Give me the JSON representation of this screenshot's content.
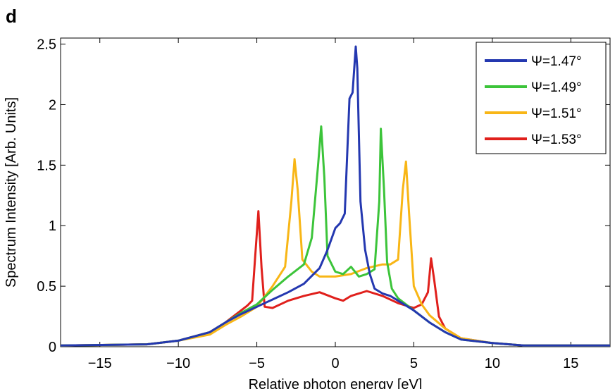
{
  "panel_label": "d",
  "chart_data": {
    "type": "line",
    "xlabel": "Relative photon energy [eV]",
    "ylabel": "Spectrum Intensity [Arb. Units]",
    "xlim": [
      -17.5,
      17.5
    ],
    "ylim": [
      0,
      2.55
    ],
    "xticks": [
      -15,
      -10,
      -5,
      0,
      5,
      10,
      15
    ],
    "xtick_labels": [
      "−15",
      "−10",
      "−5",
      "0",
      "5",
      "10",
      "15"
    ],
    "yticks": [
      0,
      0.5,
      1,
      1.5,
      2,
      2.5
    ],
    "ytick_labels": [
      "0",
      "0.5",
      "1",
      "1.5",
      "2",
      "2.5"
    ],
    "grid": false,
    "legend_position": "top-right",
    "series": [
      {
        "name": "Ψ=1.47°",
        "color": "#2438b0",
        "x": [
          -17.5,
          -12,
          -10,
          -8,
          -7,
          -6,
          -5,
          -4,
          -3,
          -2,
          -1,
          -0.5,
          0,
          0.3,
          0.6,
          0.9,
          1.1,
          1.3,
          1.4,
          1.6,
          1.9,
          2.2,
          2.5,
          3,
          3.5,
          4,
          5,
          6,
          7,
          8,
          10,
          12,
          17.5
        ],
        "y": [
          0.01,
          0.02,
          0.05,
          0.12,
          0.2,
          0.27,
          0.33,
          0.39,
          0.45,
          0.52,
          0.65,
          0.8,
          0.98,
          1.02,
          1.1,
          2.05,
          2.1,
          2.48,
          2.3,
          1.2,
          0.8,
          0.6,
          0.48,
          0.44,
          0.42,
          0.38,
          0.3,
          0.2,
          0.12,
          0.06,
          0.03,
          0.01,
          0.01
        ]
      },
      {
        "name": "Ψ=1.49°",
        "color": "#3cc43a",
        "x": [
          -17.5,
          -12,
          -10,
          -8,
          -7,
          -6,
          -5,
          -4,
          -3,
          -2,
          -1.5,
          -1.1,
          -0.9,
          -0.7,
          -0.5,
          0,
          0.5,
          1,
          1.5,
          2,
          2.5,
          2.8,
          2.9,
          3.1,
          3.3,
          3.6,
          4,
          5,
          6,
          7,
          8,
          10,
          12,
          17.5
        ],
        "y": [
          0.01,
          0.02,
          0.05,
          0.12,
          0.2,
          0.28,
          0.35,
          0.47,
          0.58,
          0.68,
          0.9,
          1.5,
          1.82,
          1.4,
          0.75,
          0.62,
          0.6,
          0.66,
          0.58,
          0.6,
          0.64,
          1.2,
          1.8,
          1.3,
          0.7,
          0.48,
          0.4,
          0.3,
          0.2,
          0.12,
          0.06,
          0.03,
          0.01,
          0.01
        ]
      },
      {
        "name": "Ψ=1.51°",
        "color": "#f8b616",
        "x": [
          -17.5,
          -12,
          -10,
          -8,
          -7,
          -6,
          -5,
          -4,
          -3.2,
          -2.8,
          -2.6,
          -2.4,
          -2.1,
          -1.5,
          -1,
          0,
          1,
          2,
          3,
          3.5,
          4,
          4.3,
          4.5,
          4.7,
          5,
          5.5,
          6,
          7,
          8,
          10,
          12,
          17.5
        ],
        "y": [
          0.01,
          0.02,
          0.05,
          0.1,
          0.18,
          0.25,
          0.33,
          0.5,
          0.66,
          1.2,
          1.55,
          1.3,
          0.72,
          0.62,
          0.58,
          0.58,
          0.6,
          0.65,
          0.68,
          0.68,
          0.72,
          1.3,
          1.53,
          1.1,
          0.5,
          0.35,
          0.26,
          0.15,
          0.07,
          0.03,
          0.01,
          0.01
        ]
      },
      {
        "name": "Ψ=1.53°",
        "color": "#e0201c",
        "x": [
          -17.5,
          -12,
          -10,
          -8,
          -7,
          -6,
          -5.6,
          -5.3,
          -5.1,
          -4.9,
          -4.7,
          -4.5,
          -4,
          -3,
          -2,
          -1,
          0,
          0.5,
          1,
          2,
          3,
          4,
          5,
          5.5,
          5.9,
          6.1,
          6.3,
          6.6,
          7,
          8,
          10,
          12,
          17.5
        ],
        "y": [
          0.01,
          0.02,
          0.05,
          0.12,
          0.2,
          0.3,
          0.34,
          0.38,
          0.75,
          1.12,
          0.65,
          0.33,
          0.32,
          0.38,
          0.42,
          0.45,
          0.4,
          0.38,
          0.42,
          0.46,
          0.42,
          0.36,
          0.32,
          0.35,
          0.45,
          0.73,
          0.55,
          0.25,
          0.15,
          0.07,
          0.03,
          0.01,
          0.01
        ]
      }
    ]
  }
}
